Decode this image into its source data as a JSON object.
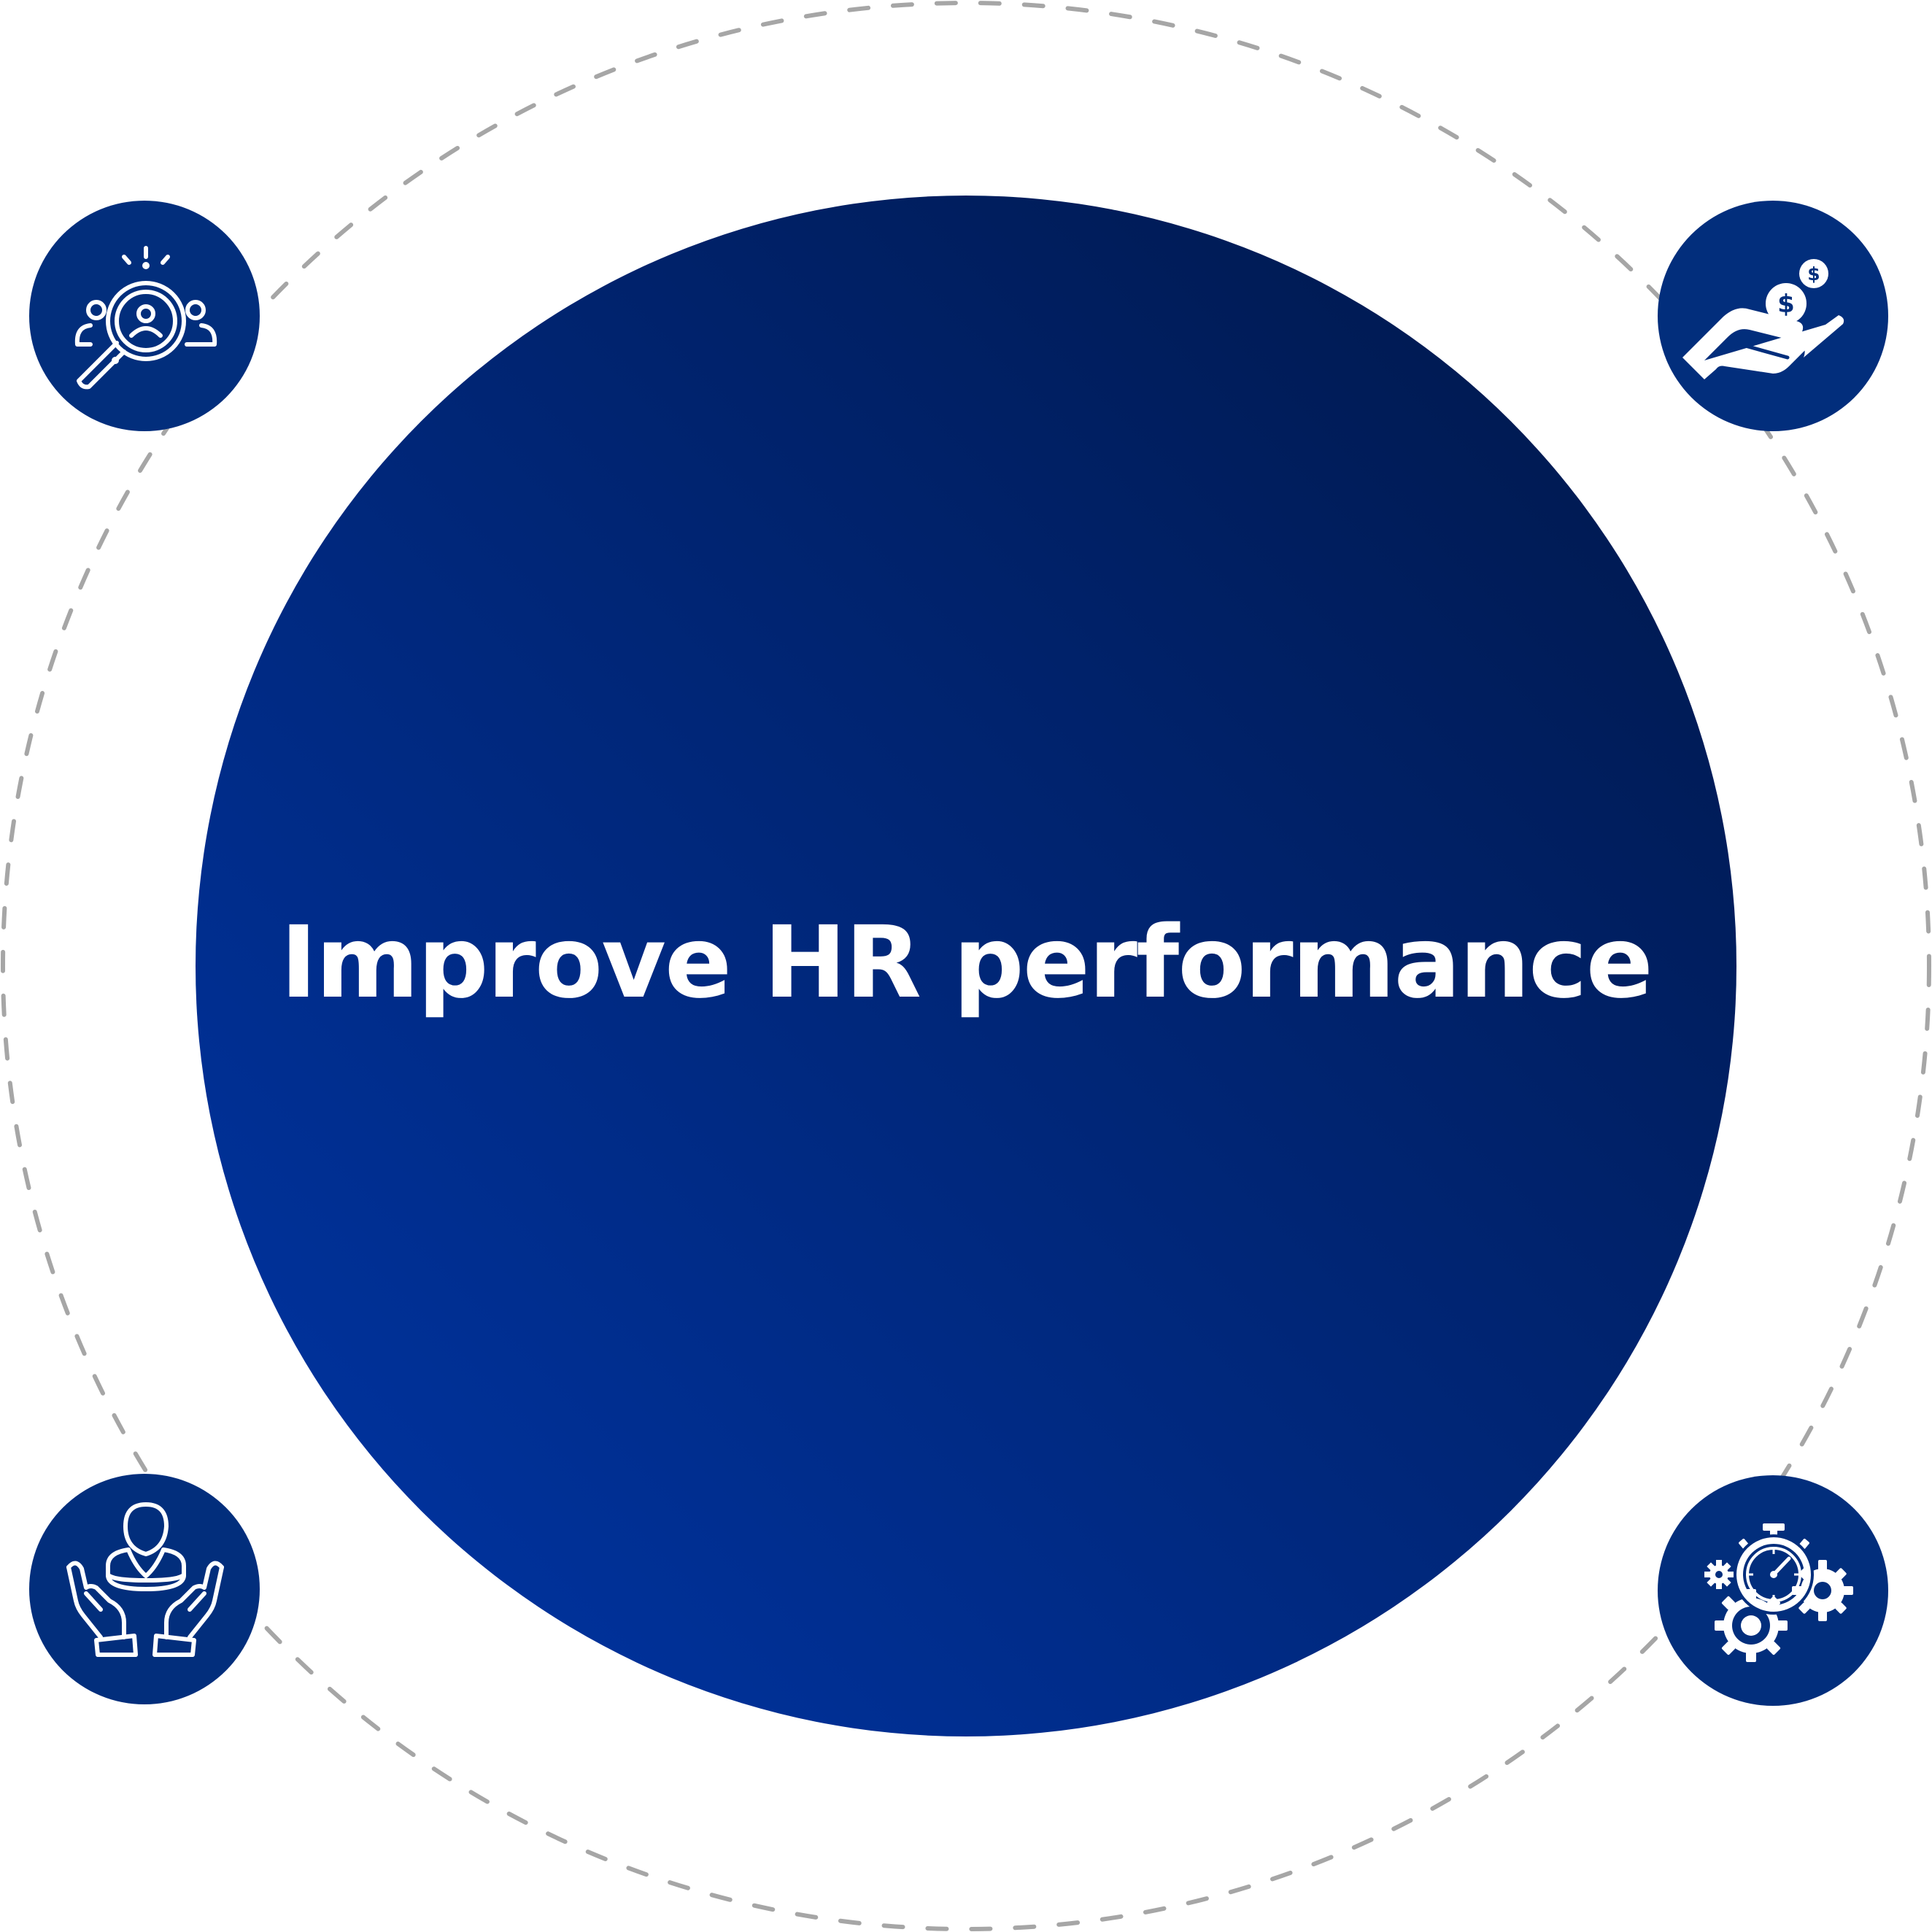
{
  "diagram": {
    "center_text": "Improve HR performance",
    "colors": {
      "center_gradient_start": "#0036a8",
      "center_gradient_end": "#001646",
      "icon_circle": "#022e7c",
      "dashed_ring": "#a6a6a6",
      "icon_stroke": "#ffffff",
      "background": "#ffffff"
    },
    "icons": [
      {
        "position": "top-left",
        "icon": "talent-search-icon"
      },
      {
        "position": "top-right",
        "icon": "hand-with-coins-icon"
      },
      {
        "position": "bottom-left",
        "icon": "employee-care-hands-icon"
      },
      {
        "position": "bottom-right",
        "icon": "stopwatch-gears-icon"
      }
    ]
  }
}
